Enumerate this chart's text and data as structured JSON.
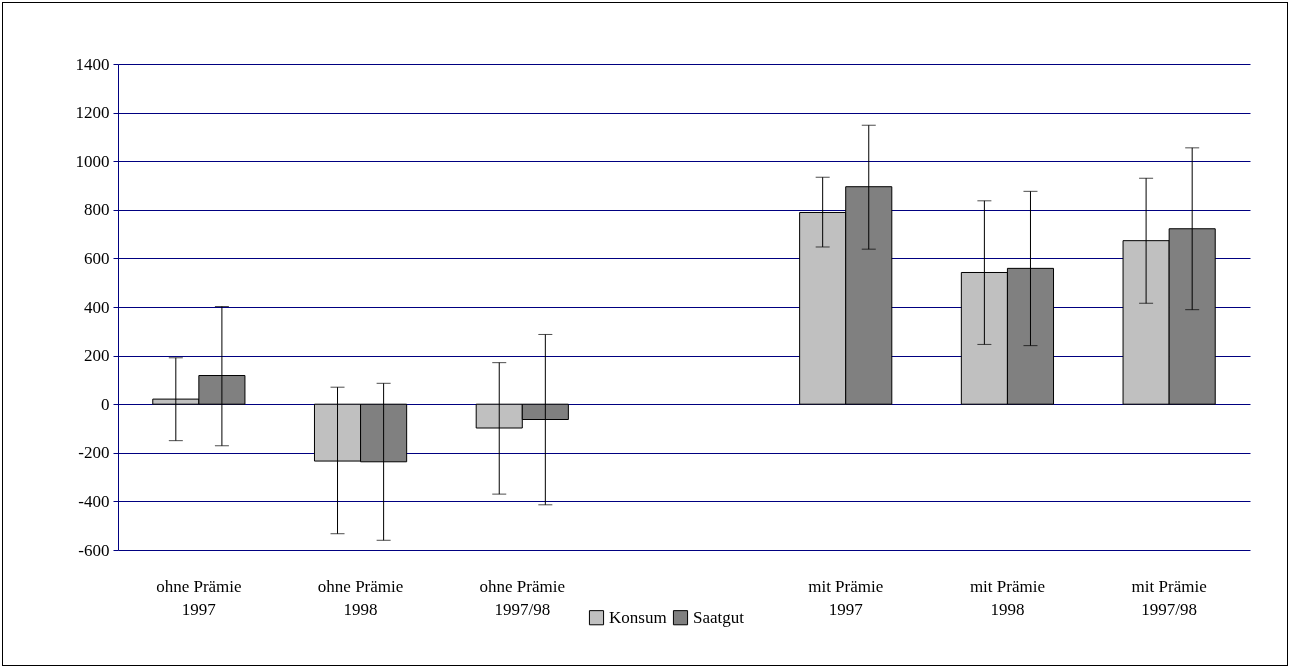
{
  "chart_data": {
    "type": "bar",
    "categories": [
      "ohne Prämie\n1997",
      "ohne Prämie\n1998",
      "ohne Prämie\n1997/98",
      null,
      "mit  Prämie\n1997",
      "mit Prämie\n1998",
      "mit Prämie\n1997/98"
    ],
    "series": [
      {
        "name": "Konsum",
        "color": "#c0c0c0",
        "values": [
          21,
          -234,
          -98,
          null,
          789,
          542,
          673
        ],
        "errors": [
          [
            -150,
            191
          ],
          [
            -533,
            70
          ],
          [
            -370,
            171
          ],
          null,
          [
            647,
            934
          ],
          [
            246,
            837
          ],
          [
            415,
            930
          ]
        ]
      },
      {
        "name": "Saatgut",
        "color": "#808080",
        "values": [
          118,
          -237,
          -63,
          null,
          895,
          559,
          722
        ],
        "errors": [
          [
            -171,
            402
          ],
          [
            -560,
            86
          ],
          [
            -414,
            287
          ],
          null,
          [
            638,
            1148
          ],
          [
            241,
            876
          ],
          [
            389,
            1055
          ]
        ]
      }
    ],
    "ylim": [
      -600,
      1400
    ],
    "yticks": [
      -600,
      -400,
      -200,
      0,
      200,
      400,
      600,
      800,
      1000,
      1200,
      1400
    ],
    "grid": "y",
    "legend": "bottom"
  }
}
